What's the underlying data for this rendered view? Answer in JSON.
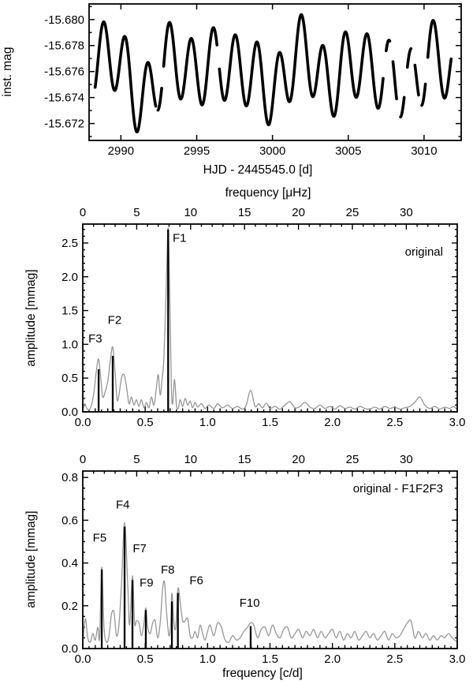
{
  "figure": {
    "background": "#ffffff",
    "axis_color": "#000000",
    "data_color": "#000000",
    "spectrum_color": "#969696",
    "peak_bar_color": "#000000"
  },
  "chart_data": [
    {
      "type": "scatter",
      "title": "",
      "xlabel": "HJD - 2445545.0 [d]",
      "ylabel": "inst. mag",
      "xlim": [
        2987.9,
        3012.45
      ],
      "ylim": [
        -15.6812,
        -15.6707
      ],
      "y_axis_inverted": true,
      "xticks": [
        2990,
        2995,
        3000,
        3005,
        3010
      ],
      "xtick_labels": [
        "2990",
        "2995",
        "3000",
        "3005",
        "3010"
      ],
      "yticks": [
        -15.68,
        -15.678,
        -15.676,
        -15.674,
        -15.672
      ],
      "ytick_labels": [
        "-15.680",
        "-15.678",
        "-15.676",
        "-15.674",
        "-15.672"
      ],
      "y_minor_step": 0.001,
      "time_start": 2988.3,
      "time_end": 3011.8,
      "mean_mag": -15.676,
      "sine_components": [
        {
          "name": "F1",
          "freq_cd": 0.69,
          "amp_mmag": 2.7,
          "t_max": 2993.2
        },
        {
          "name": "F2",
          "freq_cd": 0.235,
          "amp_mmag": 0.85,
          "t_max": 2993.35
        },
        {
          "name": "F3",
          "freq_cd": 0.126,
          "amp_mmag": 0.6,
          "t_max": 2996.0
        },
        {
          "name": "F4",
          "freq_cd": 0.335,
          "amp_mmag": 0.57,
          "t_max": 2990.0
        },
        {
          "name": "F5",
          "freq_cd": 0.152,
          "amp_mmag": 0.38,
          "t_max": 2988.0
        }
      ],
      "gaps": [
        [
          2992.3,
          2992.45
        ],
        [
          2992.7,
          2992.82
        ],
        [
          2996.35,
          2996.5
        ],
        [
          3007.3,
          3007.5
        ],
        [
          3007.75,
          3007.95
        ],
        [
          3008.2,
          3008.45
        ],
        [
          3008.7,
          3008.9
        ],
        [
          3009.15,
          3009.4
        ],
        [
          3009.65,
          3009.85
        ],
        [
          3010.1,
          3010.25
        ]
      ]
    },
    {
      "type": "line",
      "legend": "original",
      "top_axis_label": "frequency [μHz]",
      "uhz_per_cd": 11.5741,
      "top_ticks": [
        0,
        5,
        10,
        15,
        20,
        25,
        30
      ],
      "top_tick_labels": [
        "0",
        "5",
        "10",
        "15",
        "20",
        "25",
        "30"
      ],
      "ylabel": "amplitude [mmag]",
      "xlim": [
        0,
        3
      ],
      "ylim": [
        0,
        2.78
      ],
      "xticks": [
        0.0,
        0.5,
        1.0,
        1.5,
        2.0,
        2.5,
        3.0
      ],
      "xtick_labels": [
        "0.0",
        "0.5",
        "1.0",
        "1.5",
        "2.0",
        "2.5",
        "3.0"
      ],
      "x_minor_step": 0.05,
      "yticks": [
        0.0,
        0.5,
        1.0,
        1.5,
        2.0,
        2.5
      ],
      "ytick_labels": [
        "0.0",
        "0.5",
        "1.0",
        "1.5",
        "2.0",
        "2.5"
      ],
      "y_minor_step": 0.1,
      "peaks": [
        {
          "label": "F1",
          "freq_cd": 0.684,
          "amp_mmag": 2.7,
          "label_x": 0.72,
          "label_y": 2.52
        },
        {
          "label": "F2",
          "freq_cd": 0.24,
          "amp_mmag": 0.83,
          "label_x": 0.2,
          "label_y": 1.3
        },
        {
          "label": "F3",
          "freq_cd": 0.127,
          "amp_mmag": 0.63,
          "label_x": 0.045,
          "label_y": 1.03
        }
      ],
      "curve": [
        [
          0.0,
          0.02
        ],
        [
          0.015,
          0.12
        ],
        [
          0.03,
          0.06
        ],
        [
          0.05,
          0.03
        ],
        [
          0.07,
          0.1
        ],
        [
          0.09,
          0.3
        ],
        [
          0.11,
          0.62
        ],
        [
          0.127,
          0.78
        ],
        [
          0.145,
          0.48
        ],
        [
          0.16,
          0.22
        ],
        [
          0.18,
          0.3
        ],
        [
          0.2,
          0.45
        ],
        [
          0.22,
          0.75
        ],
        [
          0.24,
          0.96
        ],
        [
          0.26,
          0.55
        ],
        [
          0.275,
          0.18
        ],
        [
          0.29,
          0.25
        ],
        [
          0.31,
          0.5
        ],
        [
          0.33,
          0.55
        ],
        [
          0.35,
          0.38
        ],
        [
          0.37,
          0.12
        ],
        [
          0.39,
          0.22
        ],
        [
          0.41,
          0.1
        ],
        [
          0.43,
          0.18
        ],
        [
          0.45,
          0.08
        ],
        [
          0.47,
          0.18
        ],
        [
          0.49,
          0.06
        ],
        [
          0.51,
          0.14
        ],
        [
          0.53,
          0.06
        ],
        [
          0.55,
          0.22
        ],
        [
          0.57,
          0.1
        ],
        [
          0.59,
          0.35
        ],
        [
          0.605,
          0.55
        ],
        [
          0.62,
          0.25
        ],
        [
          0.635,
          0.48
        ],
        [
          0.65,
          0.8
        ],
        [
          0.668,
          1.8
        ],
        [
          0.684,
          2.72
        ],
        [
          0.7,
          1.4
        ],
        [
          0.71,
          0.35
        ],
        [
          0.72,
          0.12
        ],
        [
          0.735,
          0.48
        ],
        [
          0.75,
          0.1
        ],
        [
          0.765,
          0.05
        ],
        [
          0.78,
          0.18
        ],
        [
          0.8,
          0.08
        ],
        [
          0.82,
          0.2
        ],
        [
          0.84,
          0.1
        ],
        [
          0.86,
          0.16
        ],
        [
          0.88,
          0.06
        ],
        [
          0.9,
          0.14
        ],
        [
          0.92,
          0.07
        ],
        [
          0.95,
          0.12
        ],
        [
          0.98,
          0.05
        ],
        [
          1.01,
          0.1
        ],
        [
          1.05,
          0.05
        ],
        [
          1.08,
          0.12
        ],
        [
          1.12,
          0.06
        ],
        [
          1.16,
          0.1
        ],
        [
          1.2,
          0.05
        ],
        [
          1.24,
          0.08
        ],
        [
          1.28,
          0.04
        ],
        [
          1.31,
          0.1
        ],
        [
          1.345,
          0.32
        ],
        [
          1.38,
          0.08
        ],
        [
          1.41,
          0.12
        ],
        [
          1.44,
          0.06
        ],
        [
          1.47,
          0.13
        ],
        [
          1.5,
          0.05
        ],
        [
          1.54,
          0.08
        ],
        [
          1.58,
          0.04
        ],
        [
          1.62,
          0.1
        ],
        [
          1.66,
          0.15
        ],
        [
          1.7,
          0.06
        ],
        [
          1.74,
          0.08
        ],
        [
          1.78,
          0.14
        ],
        [
          1.82,
          0.07
        ],
        [
          1.86,
          0.05
        ],
        [
          1.9,
          0.1
        ],
        [
          1.94,
          0.05
        ],
        [
          1.98,
          0.08
        ],
        [
          2.02,
          0.04
        ],
        [
          2.06,
          0.09
        ],
        [
          2.1,
          0.05
        ],
        [
          2.14,
          0.07
        ],
        [
          2.18,
          0.04
        ],
        [
          2.22,
          0.08
        ],
        [
          2.26,
          0.05
        ],
        [
          2.3,
          0.04
        ],
        [
          2.34,
          0.07
        ],
        [
          2.38,
          0.04
        ],
        [
          2.42,
          0.08
        ],
        [
          2.46,
          0.05
        ],
        [
          2.5,
          0.07
        ],
        [
          2.54,
          0.04
        ],
        [
          2.58,
          0.06
        ],
        [
          2.62,
          0.08
        ],
        [
          2.66,
          0.14
        ],
        [
          2.7,
          0.22
        ],
        [
          2.74,
          0.1
        ],
        [
          2.78,
          0.05
        ],
        [
          2.82,
          0.08
        ],
        [
          2.86,
          0.04
        ],
        [
          2.9,
          0.07
        ],
        [
          2.94,
          0.05
        ],
        [
          2.97,
          0.08
        ],
        [
          3.0,
          0.03
        ]
      ]
    },
    {
      "type": "line",
      "legend": "original - F1F2F3",
      "uhz_per_cd": 11.5741,
      "top_ticks": [
        0,
        5,
        10,
        15,
        20,
        25,
        30
      ],
      "top_tick_labels": [
        "0",
        "5",
        "10",
        "15",
        "20",
        "25",
        "30"
      ],
      "xlabel": "frequency [c/d]",
      "ylabel": "amplitude [mmag]",
      "xlim": [
        0,
        3
      ],
      "ylim": [
        0,
        0.83
      ],
      "xticks": [
        0.0,
        0.5,
        1.0,
        1.5,
        2.0,
        2.5,
        3.0
      ],
      "xtick_labels": [
        "0.0",
        "0.5",
        "1.0",
        "1.5",
        "2.0",
        "2.5",
        "3.0"
      ],
      "x_minor_step": 0.05,
      "yticks": [
        0.0,
        0.2,
        0.4,
        0.6,
        0.8
      ],
      "ytick_labels": [
        "0.0",
        "0.2",
        "0.4",
        "0.6",
        "0.8"
      ],
      "y_minor_step": 0.05,
      "peaks": [
        {
          "label": "F4",
          "freq_cd": 0.335,
          "amp_mmag": 0.57,
          "label_x": 0.265,
          "label_y": 0.655
        },
        {
          "label": "F5",
          "freq_cd": 0.152,
          "amp_mmag": 0.37,
          "label_x": 0.08,
          "label_y": 0.5
        },
        {
          "label": "F6",
          "freq_cd": 0.762,
          "amp_mmag": 0.26,
          "label_x": 0.855,
          "label_y": 0.3
        },
        {
          "label": "F7",
          "freq_cd": 0.398,
          "amp_mmag": 0.32,
          "label_x": 0.4,
          "label_y": 0.45
        },
        {
          "label": "F8",
          "freq_cd": 0.714,
          "amp_mmag": 0.22,
          "label_x": 0.625,
          "label_y": 0.35
        },
        {
          "label": "F9",
          "freq_cd": 0.505,
          "amp_mmag": 0.18,
          "label_x": 0.455,
          "label_y": 0.29
        },
        {
          "label": "F10",
          "freq_cd": 1.345,
          "amp_mmag": 0.105,
          "label_x": 1.255,
          "label_y": 0.195
        }
      ],
      "curve": [
        [
          0.0,
          0.02
        ],
        [
          0.02,
          0.14
        ],
        [
          0.04,
          0.05
        ],
        [
          0.06,
          0.03
        ],
        [
          0.08,
          0.07
        ],
        [
          0.1,
          0.04
        ],
        [
          0.12,
          0.1
        ],
        [
          0.135,
          0.05
        ],
        [
          0.152,
          0.38
        ],
        [
          0.17,
          0.1
        ],
        [
          0.19,
          0.03
        ],
        [
          0.21,
          0.06
        ],
        [
          0.23,
          0.16
        ],
        [
          0.25,
          0.17
        ],
        [
          0.27,
          0.06
        ],
        [
          0.29,
          0.11
        ],
        [
          0.31,
          0.3
        ],
        [
          0.335,
          0.59
        ],
        [
          0.36,
          0.3
        ],
        [
          0.375,
          0.11
        ],
        [
          0.398,
          0.34
        ],
        [
          0.415,
          0.12
        ],
        [
          0.43,
          0.13
        ],
        [
          0.45,
          0.12
        ],
        [
          0.47,
          0.06
        ],
        [
          0.49,
          0.12
        ],
        [
          0.505,
          0.19
        ],
        [
          0.52,
          0.1
        ],
        [
          0.54,
          0.07
        ],
        [
          0.56,
          0.12
        ],
        [
          0.58,
          0.13
        ],
        [
          0.6,
          0.05
        ],
        [
          0.62,
          0.12
        ],
        [
          0.64,
          0.28
        ],
        [
          0.655,
          0.31
        ],
        [
          0.67,
          0.18
        ],
        [
          0.69,
          0.06
        ],
        [
          0.705,
          0.12
        ],
        [
          0.714,
          0.26
        ],
        [
          0.73,
          0.12
        ],
        [
          0.745,
          0.1
        ],
        [
          0.762,
          0.28
        ],
        [
          0.78,
          0.22
        ],
        [
          0.8,
          0.13
        ],
        [
          0.82,
          0.13
        ],
        [
          0.84,
          0.14
        ],
        [
          0.86,
          0.06
        ],
        [
          0.88,
          0.05
        ],
        [
          0.9,
          0.08
        ],
        [
          0.92,
          0.05
        ],
        [
          0.94,
          0.11
        ],
        [
          0.96,
          0.07
        ],
        [
          0.98,
          0.04
        ],
        [
          1.0,
          0.08
        ],
        [
          1.02,
          0.11
        ],
        [
          1.05,
          0.06
        ],
        [
          1.08,
          0.12
        ],
        [
          1.11,
          0.1
        ],
        [
          1.14,
          0.04
        ],
        [
          1.17,
          0.03
        ],
        [
          1.2,
          0.06
        ],
        [
          1.23,
          0.04
        ],
        [
          1.26,
          0.05
        ],
        [
          1.29,
          0.08
        ],
        [
          1.32,
          0.1
        ],
        [
          1.345,
          0.12
        ],
        [
          1.37,
          0.11
        ],
        [
          1.4,
          0.05
        ],
        [
          1.43,
          0.09
        ],
        [
          1.46,
          0.1
        ],
        [
          1.49,
          0.06
        ],
        [
          1.52,
          0.11
        ],
        [
          1.55,
          0.07
        ],
        [
          1.58,
          0.05
        ],
        [
          1.61,
          0.09
        ],
        [
          1.64,
          0.1
        ],
        [
          1.67,
          0.05
        ],
        [
          1.7,
          0.07
        ],
        [
          1.73,
          0.09
        ],
        [
          1.76,
          0.05
        ],
        [
          1.79,
          0.08
        ],
        [
          1.82,
          0.06
        ],
        [
          1.85,
          0.09
        ],
        [
          1.88,
          0.05
        ],
        [
          1.91,
          0.08
        ],
        [
          1.94,
          0.05
        ],
        [
          1.97,
          0.07
        ],
        [
          2.0,
          0.09
        ],
        [
          2.03,
          0.05
        ],
        [
          2.06,
          0.08
        ],
        [
          2.09,
          0.04
        ],
        [
          2.12,
          0.07
        ],
        [
          2.15,
          0.05
        ],
        [
          2.18,
          0.08
        ],
        [
          2.21,
          0.04
        ],
        [
          2.24,
          0.06
        ],
        [
          2.27,
          0.08
        ],
        [
          2.3,
          0.05
        ],
        [
          2.33,
          0.07
        ],
        [
          2.36,
          0.04
        ],
        [
          2.39,
          0.06
        ],
        [
          2.42,
          0.08
        ],
        [
          2.45,
          0.04
        ],
        [
          2.48,
          0.07
        ],
        [
          2.51,
          0.05
        ],
        [
          2.54,
          0.06
        ],
        [
          2.57,
          0.09
        ],
        [
          2.6,
          0.12
        ],
        [
          2.63,
          0.13
        ],
        [
          2.66,
          0.05
        ],
        [
          2.69,
          0.08
        ],
        [
          2.72,
          0.05
        ],
        [
          2.75,
          0.07
        ],
        [
          2.78,
          0.04
        ],
        [
          2.81,
          0.06
        ],
        [
          2.84,
          0.04
        ],
        [
          2.87,
          0.06
        ],
        [
          2.9,
          0.05
        ],
        [
          2.93,
          0.07
        ],
        [
          2.96,
          0.05
        ],
        [
          3.0,
          0.03
        ]
      ]
    }
  ]
}
